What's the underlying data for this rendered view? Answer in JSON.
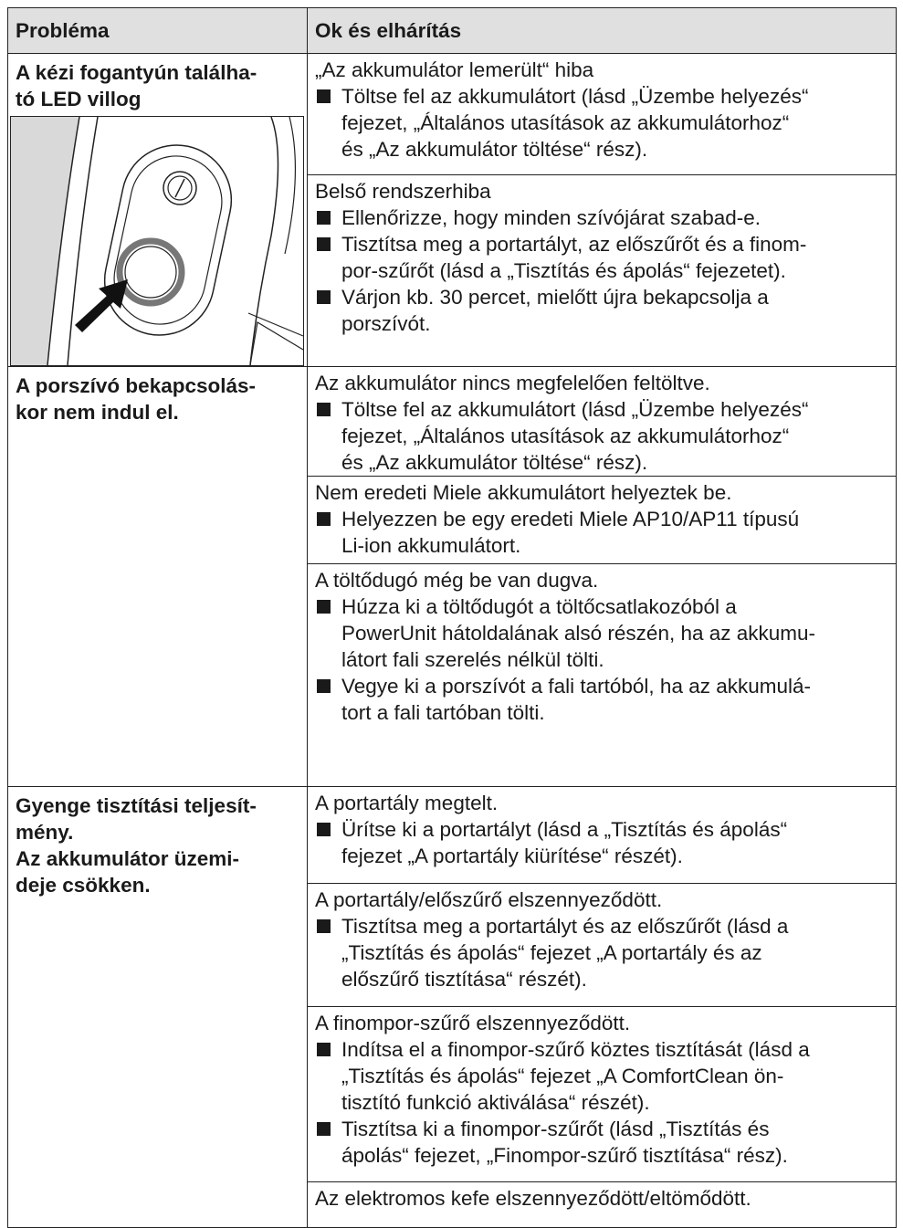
{
  "table": {
    "headers": [
      "Probléma",
      "Ok és elhárítás"
    ],
    "groups": [
      {
        "problem": "A kézi fogantyún találha-\ntó LED villog",
        "causes": [
          {
            "cause": "„Az akkumulátor lemerült“ hiba",
            "steps": [
              "Töltse fel az akkumulátort (lásd „Üzembe helyezés“\nfejezet, „Általános utasítások az akkumulátorhoz“\nés „Az akkumulátor töltése“ rész)."
            ]
          },
          {
            "cause": "Belső rendszerhiba",
            "steps": [
              "Ellenőrizze, hogy minden szívójárat szabad-e.",
              "Tisztítsa meg a portartályt, az előszűrőt és a finom-\npor-szűrőt (lásd a „Tisztítás és ápolás“ fejezetet).",
              "Várjon kb. 30 percet, mielőtt újra bekapcsolja a\nporszívót."
            ]
          }
        ]
      },
      {
        "problem": "A porszívó bekapcsolás-\nkor nem indul el.",
        "causes": [
          {
            "cause": "Az akkumulátor nincs megfelelően feltöltve.",
            "steps": [
              "Töltse fel az akkumulátort (lásd „Üzembe helyezés“\nfejezet, „Általános utasítások az akkumulátorhoz“\nés „Az akkumulátor töltése“ rész)."
            ]
          },
          {
            "cause": "Nem eredeti Miele akkumulátort helyeztek be.",
            "steps": [
              "Helyezzen be egy eredeti Miele AP10/AP11 típusú\nLi-ion akkumulátort."
            ]
          },
          {
            "cause": "A töltődugó még be van dugva.",
            "steps": [
              "Húzza ki a töltődugót a töltőcsatlakozóból a\nPowerUnit hátoldalának alsó részén, ha az akkumu-\nlátort fali szerelés nélkül tölti.",
              "Vegye ki a porszívót a fali tartóból, ha az akkumulá-\ntort a fali tartóban tölti."
            ]
          }
        ]
      },
      {
        "problem": "Gyenge tisztítási teljesít-\nmény.\nAz akkumulátor üzemi-\ndeje csökken.",
        "causes": [
          {
            "cause": "A portartály megtelt.",
            "steps": [
              "Ürítse ki a portartályt (lásd a „Tisztítás és ápolás“\nfejezet „A portartály kiürítése“ részét)."
            ]
          },
          {
            "cause": "A portartály/előszűrő elszennyeződött.",
            "steps": [
              "Tisztítsa meg a portartályt és az előszűrőt (lásd a\n„Tisztítás és ápolás“ fejezet „A portartály és az\nelőszűrő tisztítása“ részét)."
            ]
          },
          {
            "cause": "A finompor-szűrő elszennyeződött.",
            "steps": [
              "Indítsa el a finompor-szűrő köztes tisztítását (lásd a\n„Tisztítás és ápolás“ fejezet „A ComfortClean ön-\ntisztító funkció aktiválása“ részét).",
              "Tisztítsa ki a finompor-szűrőt (lásd „Tisztítás és\nápolás“ fejezet, „Finompor-szűrő tisztítása“ rész)."
            ]
          },
          {
            "cause": "Az elektromos kefe elszennyeződött/eltömődött."
          }
        ]
      }
    ]
  }
}
